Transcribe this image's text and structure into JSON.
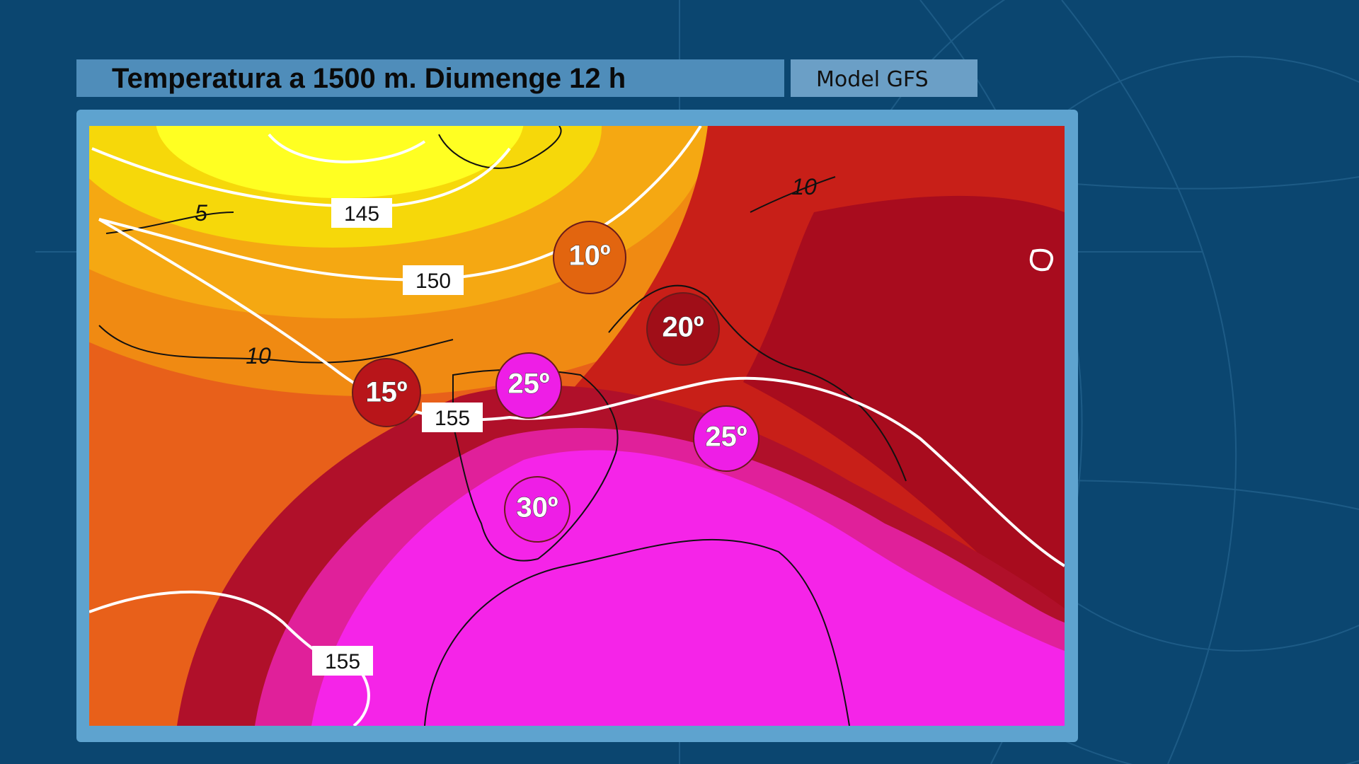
{
  "header": {
    "title": "Temperatura a 1500 m.  Diumenge 12 h",
    "model": "Model GFS"
  },
  "map": {
    "contour_labels": [
      "145",
      "150",
      "155",
      "155",
      "5",
      "10",
      "10"
    ],
    "temperature_badges": [
      "10º",
      "20º",
      "15º",
      "25º",
      "25º",
      "30º"
    ]
  }
}
